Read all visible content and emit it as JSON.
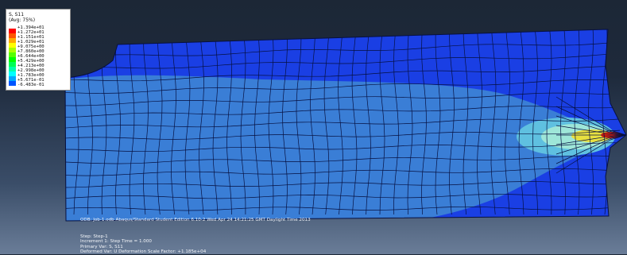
{
  "legend": {
    "variable": "S, S11",
    "averaging": "(Avg: 75%)",
    "ticks": [
      "+1.394e+01",
      "+1.272e+01",
      "+1.151e+01",
      "+1.029e+01",
      "+9.075e+00",
      "+7.860e+00",
      "+6.644e+00",
      "+5.429e+00",
      "+4.213e+00",
      "+2.998e+00",
      "+1.783e+00",
      "+5.671e-01",
      "-6.483e-01"
    ],
    "colors": [
      "#ff0000",
      "#ff5500",
      "#ffaa00",
      "#ffff00",
      "#aaff00",
      "#55ff00",
      "#00ff00",
      "#00ff55",
      "#00ffaa",
      "#00ffff",
      "#00aaff",
      "#0055ff",
      "#0000ff"
    ]
  },
  "model_colors": {
    "background_top": "#1c2736",
    "background_bottom": "#6a7d98",
    "low_stress": "#1a3fe4",
    "medium_stress": "#3a7ed6",
    "light_band": "#5fc0e0",
    "pale_band": "#9ee6d8",
    "hot_band": "#e8e040",
    "crack_tip": "#ff2000",
    "mesh_line": "#061040"
  },
  "odb_line": {
    "text": "ODB: Job-1.odb    Abaqus/Standard Student Edition 6.10-2    Wed Apr 24 14:21:25 GMT Daylight Time 2013"
  },
  "step_info": {
    "lines": [
      "Step: Step-1",
      "Increment    1: Step Time =    1.000",
      "Primary Var: S, S11",
      "Deformed Var: U   Deformation Scale Factor: +1.185e+04"
    ]
  }
}
